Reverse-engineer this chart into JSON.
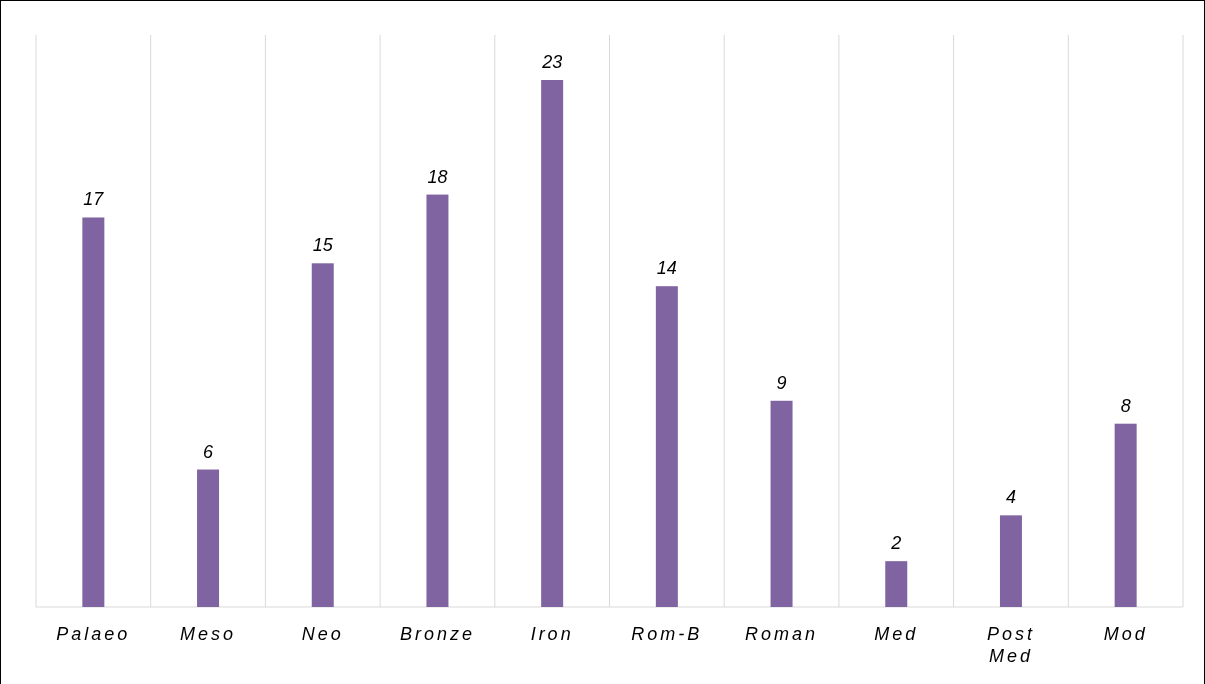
{
  "chart_data": {
    "type": "bar",
    "categories": [
      "Palaeo",
      "Meso",
      "Neo",
      "Bronze",
      "Iron",
      "Rom-B",
      "Roman",
      "Med",
      "Post Med",
      "Mod"
    ],
    "values": [
      17,
      6,
      15,
      18,
      23,
      14,
      9,
      2,
      4,
      8
    ],
    "color": "#8064a2",
    "data_labels": true,
    "grid": "x"
  }
}
